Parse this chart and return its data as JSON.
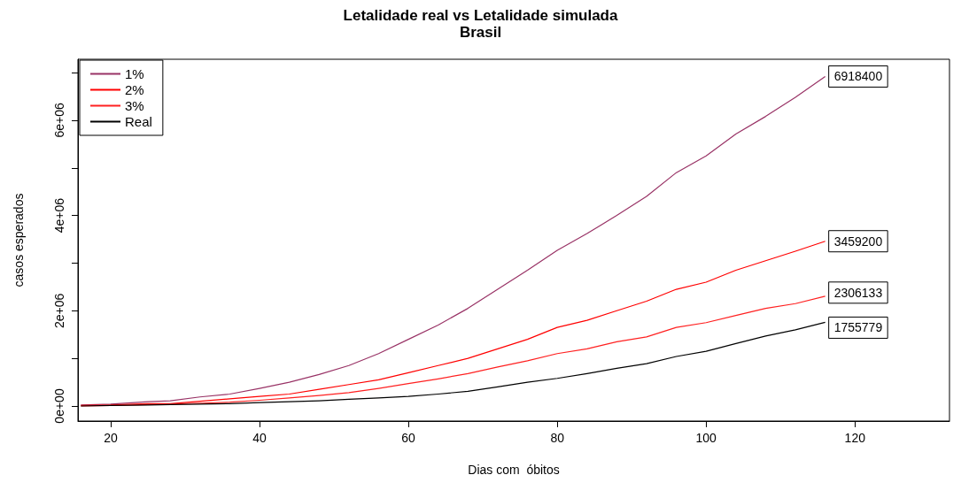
{
  "chart_data": {
    "type": "line",
    "title": "Letalidade real vs Letalidade simulada",
    "subtitle": "Brasil",
    "xlabel": "Dias com  óbitos",
    "ylabel": "casos esperados",
    "x": [
      16,
      20,
      25,
      28,
      32,
      36,
      40,
      44,
      48,
      52,
      56,
      60,
      64,
      68,
      72,
      76,
      80,
      84,
      88,
      92,
      96,
      100,
      104,
      108,
      112,
      116
    ],
    "series": [
      {
        "name": "1%",
        "color": "#993366",
        "values": [
          20000,
          40000,
          90000,
          110000,
          190000,
          250000,
          370000,
          500000,
          660000,
          850000,
          1100000,
          1400000,
          1700000,
          2050000,
          2450000,
          2850000,
          3270000,
          3620000,
          4000000,
          4400000,
          4900000,
          5250000,
          5710000,
          6080000,
          6480000,
          6918400
        ],
        "value_labels": [
          null,
          null,
          null,
          null,
          null,
          null,
          null,
          null,
          null,
          null,
          null,
          null,
          null,
          null,
          null,
          null,
          null,
          null,
          null,
          null,
          null,
          null,
          null,
          null,
          null,
          "6918400"
        ]
      },
      {
        "name": "2%",
        "color": "#ff0000",
        "values": [
          10000,
          20000,
          50000,
          50000,
          100000,
          150000,
          200000,
          250000,
          350000,
          450000,
          550000,
          700000,
          850000,
          1000000,
          1200000,
          1400000,
          1650000,
          1800000,
          2000000,
          2200000,
          2450000,
          2600000,
          2850000,
          3050000,
          3250000,
          3459200
        ],
        "value_labels": [
          null,
          null,
          null,
          null,
          null,
          null,
          null,
          null,
          null,
          null,
          null,
          null,
          null,
          null,
          null,
          null,
          null,
          null,
          null,
          null,
          null,
          null,
          null,
          null,
          null,
          "3459200"
        ]
      },
      {
        "name": "3%",
        "color": "#ff2020",
        "values": [
          0,
          10000,
          30000,
          40000,
          60000,
          80000,
          120000,
          170000,
          220000,
          280000,
          370000,
          470000,
          570000,
          680000,
          820000,
          950000,
          1100000,
          1200000,
          1350000,
          1450000,
          1650000,
          1750000,
          1900000,
          2050000,
          2150000,
          2306133
        ],
        "value_labels": [
          null,
          null,
          null,
          null,
          null,
          null,
          null,
          null,
          null,
          null,
          null,
          null,
          null,
          null,
          null,
          null,
          null,
          null,
          null,
          null,
          null,
          null,
          null,
          null,
          null,
          "2306133"
        ]
      },
      {
        "name": "Real",
        "color": "#000000",
        "values": [
          0,
          10000,
          20000,
          30000,
          40000,
          50000,
          70000,
          90000,
          110000,
          140000,
          170000,
          200000,
          250000,
          310000,
          400000,
          500000,
          580000,
          680000,
          790000,
          890000,
          1040000,
          1150000,
          1310000,
          1470000,
          1600000,
          1755779
        ],
        "value_labels": [
          null,
          null,
          null,
          null,
          null,
          null,
          null,
          null,
          null,
          null,
          null,
          null,
          null,
          null,
          null,
          null,
          null,
          null,
          null,
          null,
          null,
          null,
          null,
          null,
          null,
          "1755779"
        ]
      }
    ],
    "xlim": [
      15.6,
      132.7
    ],
    "xticks": [
      20,
      40,
      60,
      80,
      100,
      120
    ],
    "ylim": [
      -316000,
      7280000
    ],
    "yticks": [
      {
        "value": 0,
        "label": "0e+00"
      },
      {
        "value": 1000000,
        "label": null
      },
      {
        "value": 2000000,
        "label": "2e+06"
      },
      {
        "value": 3000000,
        "label": null
      },
      {
        "value": 4000000,
        "label": "4e+06"
      },
      {
        "value": 5000000,
        "label": null
      },
      {
        "value": 6000000,
        "label": "6e+06"
      },
      {
        "value": 7000000,
        "label": null
      }
    ],
    "legend": "top left",
    "grid": false,
    "marker": "none",
    "line_style": "solid"
  }
}
